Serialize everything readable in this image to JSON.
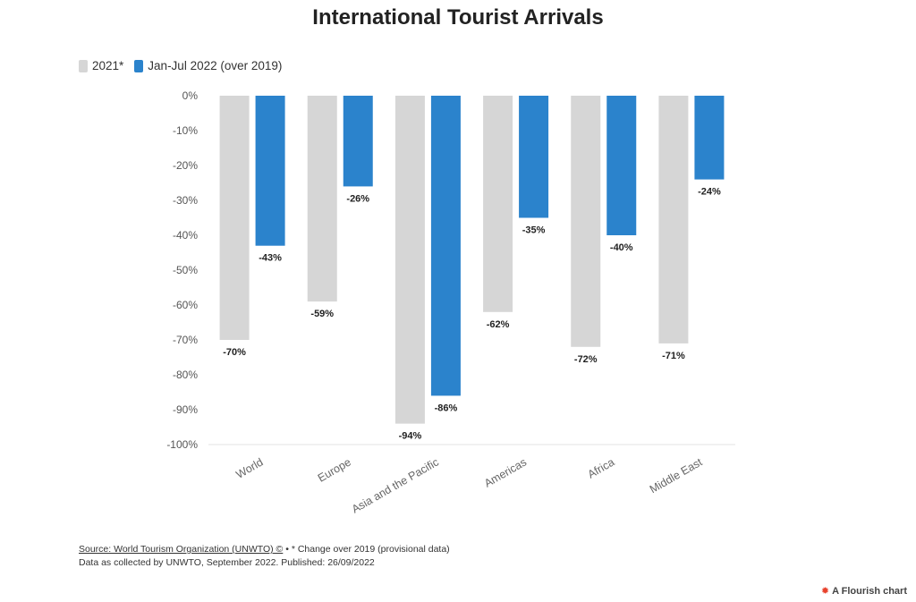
{
  "chart_data": {
    "type": "bar",
    "title": "International Tourist Arrivals",
    "categories": [
      "World",
      "Europe",
      "Asia and the Pacific",
      "Americas",
      "Africa",
      "Middle East"
    ],
    "series": [
      {
        "name": "2021*",
        "color": "#d6d6d6",
        "values": [
          -70,
          -59,
          -94,
          -62,
          -72,
          -71
        ]
      },
      {
        "name": "Jan-Jul 2022 (over 2019)",
        "color": "#2b83cc",
        "values": [
          -43,
          -26,
          -86,
          -35,
          -40,
          -24
        ]
      }
    ],
    "ylim": [
      -100,
      0
    ],
    "y_ticks": [
      0,
      -10,
      -20,
      -30,
      -40,
      -50,
      -60,
      -70,
      -80,
      -90,
      -100
    ],
    "y_tick_labels": [
      "0%",
      "-10%",
      "-20%",
      "-30%",
      "-40%",
      "-50%",
      "-60%",
      "-70%",
      "-80%",
      "-90%",
      "-100%"
    ],
    "data_labels": [
      [
        "-70%",
        "-59%",
        "-94%",
        "-62%",
        "-72%",
        "-71%"
      ],
      [
        "-43%",
        "-26%",
        "-86%",
        "-35%",
        "-40%",
        "-24%"
      ]
    ],
    "legend_position": "top-left",
    "grid": false
  },
  "footer": {
    "source_link": "Source: World Tourism Organization (UNWTO) ©",
    "source_note": " • * Change over 2019 (provisional data)",
    "line2": "Data as collected by UNWTO, September 2022. Published: 26/09/2022"
  },
  "branding": {
    "flourish_label": "A Flourish chart",
    "icon": "flourish-logo-icon"
  }
}
